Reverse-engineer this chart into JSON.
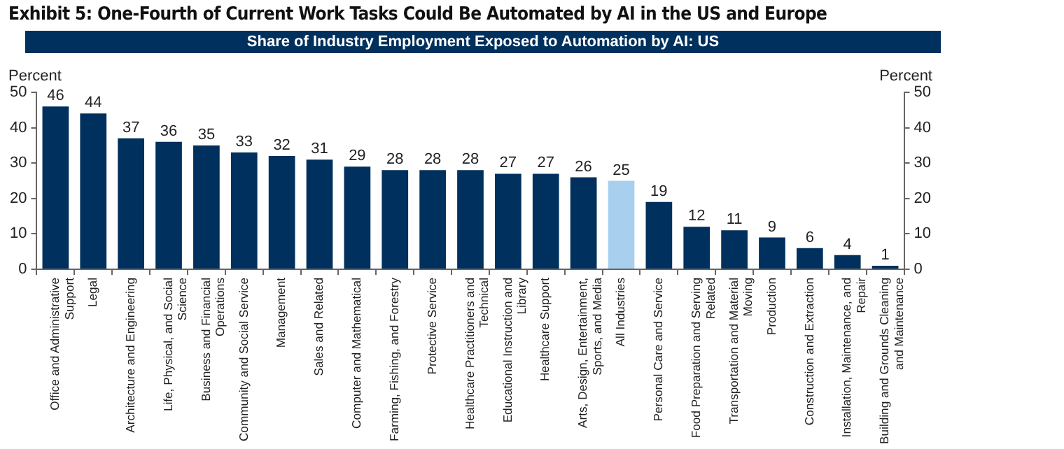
{
  "chart_data": {
    "type": "bar",
    "title": "Exhibit 5: One-Fourth of Current Work Tasks Could Be Automated by AI in the US and Europe",
    "subtitle": "Share of Industry Employment Exposed to Automation by AI: US",
    "ylabel": "Percent",
    "y2label": "Percent",
    "categories": [
      "Office and Administrative Support",
      "Legal",
      "Architecture and Engineering",
      "Life, Physical, and Social Science",
      "Business and Financial Operations",
      "Community and Social Service",
      "Management",
      "Sales and Related",
      "Computer and Mathematical",
      "Farming, Fishing, and Forestry",
      "Protective Service",
      "Healthcare Practitioners and Technical",
      "Educational Instruction and Library",
      "Healthcare Support",
      "Arts, Design, Entertainment, Sports, and Media",
      "All Industries",
      "Personal Care and Service",
      "Food Preparation and Serving Related",
      "Transportation and Material Moving",
      "Production",
      "Construction and Extraction",
      "Installation, Maintenance, and Repair",
      "Building and Grounds Cleaning and Maintenance"
    ],
    "values": [
      46,
      44,
      37,
      36,
      35,
      33,
      32,
      31,
      29,
      28,
      28,
      28,
      27,
      27,
      26,
      25,
      19,
      12,
      11,
      9,
      6,
      4,
      1
    ],
    "colors": [
      "#00305d",
      "#00305d",
      "#00305d",
      "#00305d",
      "#00305d",
      "#00305d",
      "#00305d",
      "#00305d",
      "#00305d",
      "#00305d",
      "#00305d",
      "#00305d",
      "#00305d",
      "#00305d",
      "#00305d",
      "#a8cfee",
      "#00305d",
      "#00305d",
      "#00305d",
      "#00305d",
      "#00305d",
      "#00305d",
      "#00305d"
    ],
    "ylim": [
      0,
      50
    ],
    "yticks": [
      0,
      10,
      20,
      30,
      40,
      50
    ],
    "y2lim": [
      0,
      50
    ],
    "y2ticks": [
      0,
      10,
      20,
      30,
      40,
      50
    ],
    "data_labels": true,
    "grid": false,
    "legend": false
  }
}
